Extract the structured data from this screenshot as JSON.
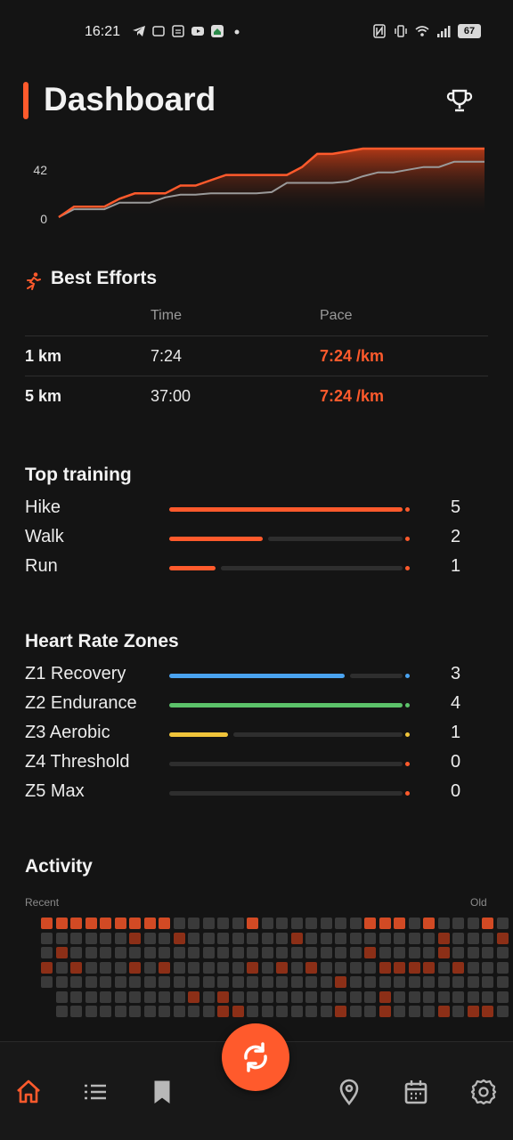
{
  "status_bar": {
    "time": "16:21",
    "battery": "67"
  },
  "header": {
    "title": "Dashboard"
  },
  "chart_data": {
    "type": "area",
    "y_ticks": [
      "42",
      "0"
    ],
    "series": [
      {
        "values": [
          0,
          8,
          8,
          8,
          14,
          18,
          18,
          18,
          24,
          24,
          28,
          32,
          32,
          32,
          32,
          32,
          38,
          48,
          48,
          50,
          52,
          52,
          52,
          52,
          52,
          52,
          52,
          52,
          52
        ]
      },
      {
        "values": [
          0,
          6,
          6,
          6,
          11,
          11,
          11,
          15,
          17,
          17,
          18,
          18,
          18,
          18,
          19,
          26,
          26,
          26,
          26,
          27,
          31,
          34,
          34,
          36,
          38,
          38,
          42,
          42,
          42
        ]
      }
    ],
    "ylim": [
      0,
      52
    ],
    "colors": {
      "primary": "#ff5a2c",
      "secondary": "#9a9a9a"
    }
  },
  "best_efforts": {
    "title": "Best Efforts",
    "headers": {
      "time": "Time",
      "pace": "Pace"
    },
    "rows": [
      {
        "distance": "1 km",
        "time": "7:24",
        "pace": "7:24 /km"
      },
      {
        "distance": "5 km",
        "time": "37:00",
        "pace": "7:24 /km"
      }
    ]
  },
  "top_training": {
    "title": "Top training",
    "items": [
      {
        "label": "Hike",
        "value": "5",
        "fraction": 1.0,
        "color": "#ff5a2c"
      },
      {
        "label": "Walk",
        "value": "2",
        "fraction": 0.4,
        "color": "#ff5a2c"
      },
      {
        "label": "Run",
        "value": "1",
        "fraction": 0.2,
        "color": "#ff5a2c"
      }
    ]
  },
  "heart_rate_zones": {
    "title": "Heart Rate Zones",
    "items": [
      {
        "label": "Z1 Recovery",
        "value": "3",
        "fraction": 0.75,
        "color": "#4aa3f0"
      },
      {
        "label": "Z2 Endurance",
        "value": "4",
        "fraction": 1.0,
        "color": "#5cc26a"
      },
      {
        "label": "Z3 Aerobic",
        "value": "1",
        "fraction": 0.25,
        "color": "#f0c43a"
      },
      {
        "label": "Z4 Threshold",
        "value": "0",
        "fraction": 0,
        "color": "#ff5a2c"
      },
      {
        "label": "Z5 Max",
        "value": "0",
        "fraction": 0,
        "color": "#ff5a2c"
      }
    ]
  },
  "activity": {
    "title": "Activity",
    "recent_label": "Recent",
    "old_label": "Old",
    "weeks": [
      [
        3,
        0,
        0,
        2,
        0,
        0,
        0
      ],
      [
        3,
        0,
        2,
        0,
        0,
        0,
        0
      ],
      [
        3,
        0,
        0,
        2,
        0,
        0,
        0
      ],
      [
        3,
        0,
        0,
        0,
        0,
        0,
        0
      ],
      [
        3,
        0,
        0,
        0,
        0,
        0,
        0
      ],
      [
        3,
        0,
        0,
        0,
        0,
        0,
        0
      ],
      [
        3,
        2,
        0,
        2,
        0,
        0,
        0
      ],
      [
        3,
        0,
        0,
        0,
        0,
        0,
        0
      ],
      [
        3,
        0,
        0,
        2,
        0,
        0,
        0
      ],
      [
        0,
        2,
        0,
        0,
        0,
        0,
        0
      ],
      [
        0,
        0,
        0,
        0,
        0,
        2,
        0
      ],
      [
        0,
        0,
        0,
        0,
        0,
        0,
        0
      ],
      [
        0,
        0,
        0,
        0,
        0,
        2,
        2
      ],
      [
        0,
        0,
        0,
        0,
        0,
        0,
        2
      ],
      [
        3,
        0,
        0,
        2,
        0,
        0,
        0
      ],
      [
        0,
        0,
        0,
        0,
        0,
        0,
        0
      ],
      [
        0,
        0,
        0,
        2,
        0,
        0,
        0
      ],
      [
        0,
        2,
        0,
        0,
        0,
        0,
        0
      ],
      [
        0,
        0,
        0,
        2,
        0,
        0,
        0
      ],
      [
        0,
        0,
        0,
        0,
        0,
        0,
        0
      ],
      [
        0,
        0,
        0,
        0,
        2,
        0,
        2
      ],
      [
        0,
        0,
        0,
        0,
        0,
        0,
        0
      ],
      [
        3,
        0,
        2,
        0,
        0,
        0,
        0
      ],
      [
        3,
        0,
        0,
        2,
        0,
        2,
        2
      ],
      [
        3,
        0,
        0,
        2,
        0,
        0,
        0
      ],
      [
        0,
        0,
        0,
        2,
        0,
        0,
        0
      ],
      [
        3,
        0,
        0,
        2,
        0,
        0,
        0
      ],
      [
        0,
        2,
        2,
        0,
        0,
        0,
        2
      ],
      [
        0,
        0,
        0,
        2,
        0,
        0,
        0
      ],
      [
        0,
        0,
        0,
        0,
        0,
        0,
        2
      ],
      [
        3,
        0,
        0,
        0,
        0,
        0,
        2
      ],
      [
        0,
        2,
        0,
        0,
        0,
        0,
        0
      ]
    ],
    "colors": {
      "empty": "#3a3a3a",
      "low": "#8c2f17",
      "high": "#d24a24"
    }
  },
  "bottom_nav": {
    "active": "home",
    "colors": {
      "active": "#ff5a2c",
      "inactive": "#b8b8b8"
    }
  }
}
